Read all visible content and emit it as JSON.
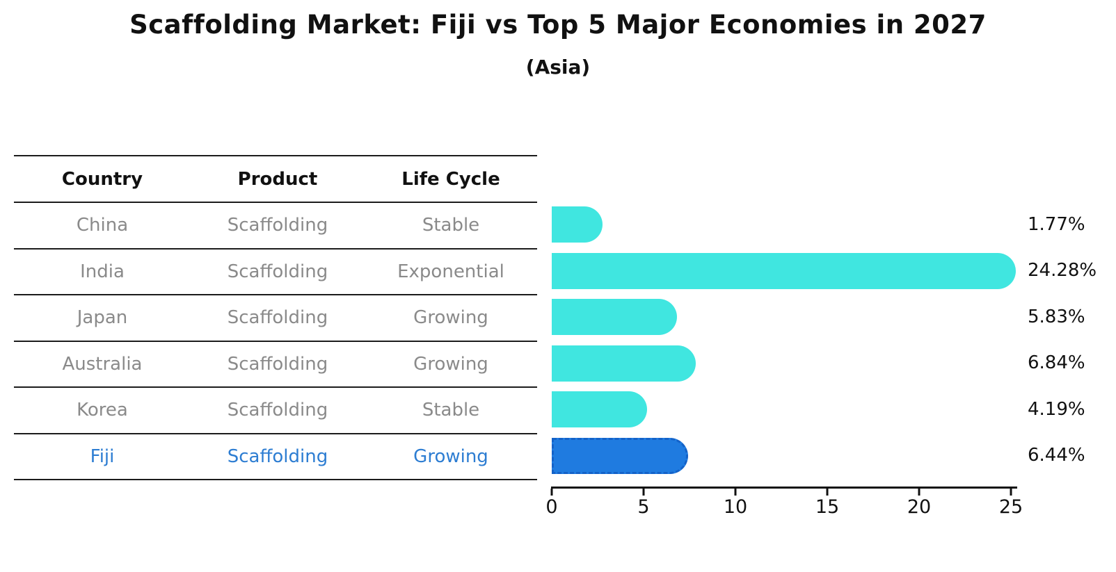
{
  "title": "Scaffolding Market: Fiji vs Top 5 Major Economies in 2027",
  "subtitle": "(Asia)",
  "table": {
    "headers": [
      "Country",
      "Product",
      "Life Cycle"
    ],
    "rows": [
      {
        "country": "China",
        "product": "Scaffolding",
        "life_cycle": "Stable",
        "highlight": false
      },
      {
        "country": "India",
        "product": "Scaffolding",
        "life_cycle": "Exponential",
        "highlight": false
      },
      {
        "country": "Japan",
        "product": "Scaffolding",
        "life_cycle": "Growing",
        "highlight": false
      },
      {
        "country": "Australia",
        "product": "Scaffolding",
        "life_cycle": "Growing",
        "highlight": false
      },
      {
        "country": "Korea",
        "product": "Scaffolding",
        "life_cycle": "Stable",
        "highlight": false
      },
      {
        "country": "Fiji",
        "product": "Scaffolding",
        "life_cycle": "Growing",
        "highlight": true
      }
    ]
  },
  "chart_data": {
    "type": "bar",
    "orientation": "horizontal",
    "title": "Scaffolding Market: Fiji vs Top 5 Major Economies in 2027",
    "subtitle": "(Asia)",
    "categories": [
      "China",
      "India",
      "Japan",
      "Australia",
      "Korea",
      "Fiji"
    ],
    "values": [
      1.77,
      24.28,
      5.83,
      6.84,
      4.19,
      6.44
    ],
    "value_labels": [
      "1.77%",
      "24.28%",
      "5.83%",
      "6.84%",
      "4.19%",
      "6.44%"
    ],
    "unit": "%",
    "x_ticks": [
      0,
      5,
      10,
      15,
      20,
      25
    ],
    "x_tick_labels": [
      "0",
      "5",
      "10",
      "15",
      "20",
      "25"
    ],
    "xlim": [
      0,
      25
    ],
    "xlabel": "",
    "ylabel": "",
    "grid": false,
    "legend": false,
    "bar_color": "#40e6e0",
    "highlight_color": "#1f7be0",
    "highlight_edge_color": "#1462c8",
    "highlight_text_color": "#2d7dd2",
    "highlight_index": 5
  }
}
